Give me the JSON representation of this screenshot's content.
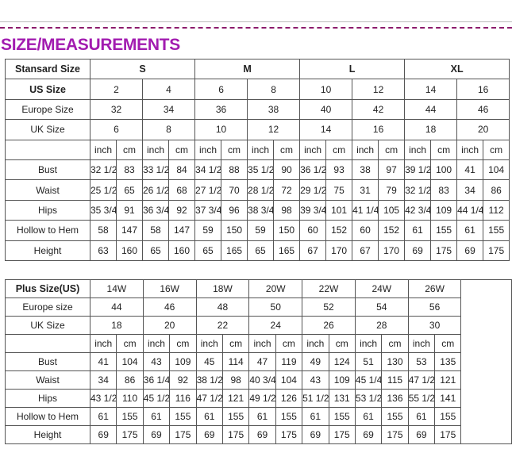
{
  "title": "SIZE/MEASUREMENTS",
  "colors": {
    "title": "#a21cb0",
    "dashed_rule": "#8c1c6c",
    "grid": "#555555"
  },
  "standard_table": {
    "header_label": "Stansard Size",
    "size_groups": [
      "S",
      "M",
      "L",
      "XL"
    ],
    "us_size": {
      "label": "US Size",
      "values": [
        "2",
        "4",
        "6",
        "8",
        "10",
        "12",
        "14",
        "16"
      ]
    },
    "europe_size": {
      "label": "Europe Size",
      "values": [
        "32",
        "34",
        "36",
        "38",
        "40",
        "42",
        "44",
        "46"
      ]
    },
    "uk_size": {
      "label": "UK Size",
      "values": [
        "6",
        "8",
        "10",
        "12",
        "14",
        "16",
        "18",
        "20"
      ]
    },
    "units": [
      "inch",
      "cm",
      "inch",
      "cm",
      "inch",
      "cm",
      "inch",
      "cm",
      "inch",
      "cm",
      "inch",
      "cm",
      "inch",
      "cm",
      "inch",
      "cm"
    ],
    "measurements": [
      {
        "label": "Bust",
        "values": [
          "32 1/2",
          "83",
          "33 1/2",
          "84",
          "34 1/2",
          "88",
          "35 1/2",
          "90",
          "36 1/2",
          "93",
          "38",
          "97",
          "39 1/2",
          "100",
          "41",
          "104"
        ]
      },
      {
        "label": "Waist",
        "values": [
          "25 1/2",
          "65",
          "26 1/2",
          "68",
          "27 1/2",
          "70",
          "28 1/2",
          "72",
          "29 1/2",
          "75",
          "31",
          "79",
          "32 1/2",
          "83",
          "34",
          "86"
        ]
      },
      {
        "label": "Hips",
        "values": [
          "35 3/4",
          "91",
          "36 3/4",
          "92",
          "37 3/4",
          "96",
          "38 3/4",
          "98",
          "39 3/4",
          "101",
          "41 1/4",
          "105",
          "42 3/4",
          "109",
          "44 1/4",
          "112"
        ]
      },
      {
        "label": "Hollow to Hem",
        "values": [
          "58",
          "147",
          "58",
          "147",
          "59",
          "150",
          "59",
          "150",
          "60",
          "152",
          "60",
          "152",
          "61",
          "155",
          "61",
          "155"
        ]
      },
      {
        "label": "Height",
        "values": [
          "63",
          "160",
          "65",
          "160",
          "65",
          "165",
          "65",
          "165",
          "67",
          "170",
          "67",
          "170",
          "69",
          "175",
          "69",
          "175"
        ]
      }
    ]
  },
  "plus_table": {
    "header_label": "Plus Size(US)",
    "sizes": [
      "14W",
      "16W",
      "18W",
      "20W",
      "22W",
      "24W",
      "26W"
    ],
    "europe_size": {
      "label": "Europe size",
      "values": [
        "44",
        "46",
        "48",
        "50",
        "52",
        "54",
        "56"
      ]
    },
    "uk_size": {
      "label": "UK Size",
      "values": [
        "18",
        "20",
        "22",
        "24",
        "26",
        "28",
        "30"
      ]
    },
    "units": [
      "inch",
      "cm",
      "inch",
      "cm",
      "inch",
      "cm",
      "inch",
      "cm",
      "inch",
      "cm",
      "inch",
      "cm",
      "inch",
      "cm"
    ],
    "measurements": [
      {
        "label": "Bust",
        "values": [
          "41",
          "104",
          "43",
          "109",
          "45",
          "114",
          "47",
          "119",
          "49",
          "124",
          "51",
          "130",
          "53",
          "135"
        ]
      },
      {
        "label": "Waist",
        "values": [
          "34",
          "86",
          "36 1/4",
          "92",
          "38 1/2",
          "98",
          "40 3/4",
          "104",
          "43",
          "109",
          "45 1/4",
          "115",
          "47 1/2",
          "121"
        ]
      },
      {
        "label": "Hips",
        "values": [
          "43 1/2",
          "110",
          "45 1/2",
          "116",
          "47 1/2",
          "121",
          "49 1/2",
          "126",
          "51 1/2",
          "131",
          "53 1/2",
          "136",
          "55 1/2",
          "141"
        ]
      },
      {
        "label": "Hollow to Hem",
        "values": [
          "61",
          "155",
          "61",
          "155",
          "61",
          "155",
          "61",
          "155",
          "61",
          "155",
          "61",
          "155",
          "61",
          "155"
        ]
      },
      {
        "label": "Height",
        "values": [
          "69",
          "175",
          "69",
          "175",
          "69",
          "175",
          "69",
          "175",
          "69",
          "175",
          "69",
          "175",
          "69",
          "175"
        ]
      }
    ]
  }
}
